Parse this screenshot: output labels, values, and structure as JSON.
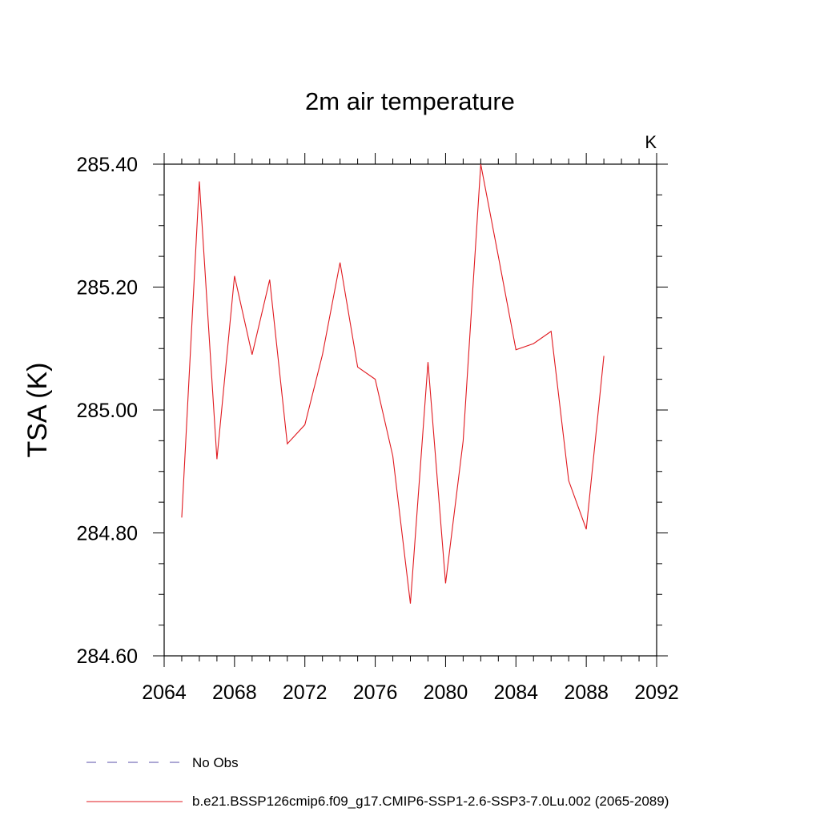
{
  "chart_data": {
    "type": "line",
    "title": "2m air temperature",
    "units": "K",
    "xlabel": "",
    "ylabel": "TSA  (K)",
    "xlim": [
      2064,
      2092
    ],
    "ylim": [
      284.6,
      285.4
    ],
    "x_ticks": [
      "2064",
      "2068",
      "2072",
      "2076",
      "2080",
      "2084",
      "2088",
      "2092"
    ],
    "y_ticks": [
      "284.60",
      "284.80",
      "285.00",
      "285.20",
      "285.40"
    ],
    "legend": [
      {
        "name": "No Obs",
        "style": "dashed",
        "color": "#5a4fa8"
      },
      {
        "name": "b.e21.BSSP126cmip6.f09_g17.CMIP6-SSP1-2.6-SSP3-7.0Lu.002 (2065-2089)",
        "style": "solid",
        "color": "#e0191f"
      }
    ],
    "series": [
      {
        "name": "b.e21.BSSP126cmip6.f09_g17.CMIP6-SSP1-2.6-SSP3-7.0Lu.002 (2065-2089)",
        "color": "#e0191f",
        "x": [
          2065,
          2066,
          2067,
          2068,
          2069,
          2070,
          2071,
          2072,
          2073,
          2074,
          2075,
          2076,
          2077,
          2078,
          2079,
          2080,
          2081,
          2082,
          2083,
          2084,
          2085,
          2086,
          2087,
          2088,
          2089
        ],
        "values": [
          284.825,
          285.372,
          284.92,
          285.218,
          285.09,
          285.212,
          284.945,
          284.976,
          285.09,
          285.24,
          285.07,
          285.05,
          284.925,
          284.685,
          285.078,
          284.718,
          284.95,
          285.4,
          285.25,
          285.098,
          285.108,
          285.128,
          284.885,
          284.806,
          285.088
        ]
      }
    ]
  }
}
